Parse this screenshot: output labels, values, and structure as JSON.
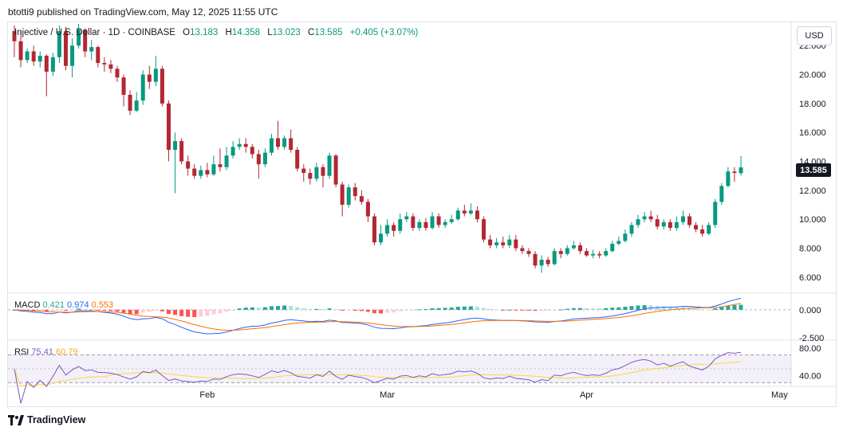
{
  "header": {
    "text": "btotti9 published on TradingView.com, May 12, 2025 11:55 UTC"
  },
  "legend": {
    "symbol": "Injective / U.S. Dollar · 1D · COINBASE",
    "o_label": "O",
    "o": "13.183",
    "h_label": "H",
    "h": "14.358",
    "l_label": "L",
    "l": "13.023",
    "c_label": "C",
    "c": "13.585",
    "change": "+0.405 (+3.07%)"
  },
  "currency": "USD",
  "last_price": "13.585",
  "colors": {
    "up": "#089981",
    "down": "#b22833",
    "macd_line": "#2962ff",
    "signal_line": "#ff6d00",
    "rsi_line": "#7e57c2",
    "rsi_ma": "#fdd835"
  },
  "macd_legend": {
    "name": "MACD",
    "hist": "0.421",
    "macd": "0.974",
    "signal": "0.553"
  },
  "rsi_legend": {
    "name": "RSI",
    "rsi": "75.41",
    "ma": "60.79"
  },
  "footer": {
    "brand": "TradingView"
  },
  "chart_data": {
    "type": "candlestick",
    "title": "Injective / U.S. Dollar · 1D · COINBASE",
    "price_axis": {
      "min": 5.0,
      "max": 23.5,
      "ticks": [
        "22.000",
        "20.000",
        "18.000",
        "16.000",
        "14.000",
        "12.000",
        "10.000",
        "8.000",
        "6.000"
      ],
      "tick_values": [
        22,
        20,
        18,
        16,
        14,
        12,
        10,
        8,
        6
      ]
    },
    "x_ticks": [
      {
        "label": "Feb",
        "index": 30
      },
      {
        "label": "Mar",
        "index": 58
      },
      {
        "label": "Apr",
        "index": 89
      },
      {
        "label": "May",
        "index": 119
      }
    ],
    "candles": [
      [
        23.0,
        22.3,
        23.4,
        21.2
      ],
      [
        22.3,
        21.0,
        23.0,
        20.5
      ],
      [
        21.0,
        21.6,
        21.8,
        20.8
      ],
      [
        21.6,
        20.9,
        22.0,
        20.6
      ],
      [
        20.9,
        21.3,
        21.6,
        20.5
      ],
      [
        21.3,
        20.2,
        21.4,
        18.5
      ],
      [
        20.2,
        21.2,
        21.5,
        19.9
      ],
      [
        21.2,
        23.0,
        23.4,
        20.8
      ],
      [
        23.0,
        20.6,
        23.3,
        20.3
      ],
      [
        20.6,
        22.0,
        22.5,
        19.8
      ],
      [
        22.0,
        23.1,
        23.5,
        21.8
      ],
      [
        23.1,
        21.6,
        23.2,
        21.2
      ],
      [
        21.6,
        21.9,
        22.4,
        21.0
      ],
      [
        21.9,
        20.8,
        22.0,
        20.5
      ],
      [
        20.8,
        20.7,
        21.2,
        20.2
      ],
      [
        20.7,
        20.4,
        21.0,
        20.1
      ],
      [
        20.4,
        19.8,
        20.6,
        19.5
      ],
      [
        19.8,
        18.6,
        20.0,
        17.8
      ],
      [
        18.6,
        17.5,
        18.9,
        17.2
      ],
      [
        17.5,
        18.2,
        18.8,
        17.4
      ],
      [
        18.2,
        20.0,
        20.3,
        17.9
      ],
      [
        20.0,
        19.5,
        20.6,
        19.0
      ],
      [
        19.5,
        20.4,
        21.3,
        19.2
      ],
      [
        20.4,
        18.0,
        20.6,
        17.8
      ],
      [
        18.0,
        14.8,
        18.2,
        14.0
      ],
      [
        14.8,
        15.4,
        16.0,
        11.8
      ],
      [
        15.4,
        14.0,
        15.6,
        13.8
      ],
      [
        14.0,
        13.5,
        14.4,
        13.0
      ],
      [
        13.5,
        13.0,
        13.8,
        12.8
      ],
      [
        13.0,
        13.4,
        13.7,
        12.8
      ],
      [
        13.4,
        13.1,
        13.9,
        12.9
      ],
      [
        13.1,
        13.8,
        14.4,
        13.0
      ],
      [
        13.8,
        13.6,
        14.9,
        13.3
      ],
      [
        13.6,
        14.4,
        15.0,
        13.4
      ],
      [
        14.4,
        15.0,
        15.4,
        14.2
      ],
      [
        15.0,
        15.2,
        15.6,
        14.8
      ],
      [
        15.2,
        15.0,
        15.6,
        14.6
      ],
      [
        15.0,
        14.5,
        15.2,
        14.2
      ],
      [
        14.5,
        13.8,
        14.8,
        12.8
      ],
      [
        13.8,
        14.6,
        14.9,
        13.6
      ],
      [
        14.6,
        15.6,
        15.9,
        14.4
      ],
      [
        15.6,
        15.0,
        16.8,
        14.8
      ],
      [
        15.0,
        15.6,
        15.8,
        14.8
      ],
      [
        15.6,
        14.8,
        16.2,
        14.6
      ],
      [
        14.8,
        13.5,
        15.0,
        13.3
      ],
      [
        13.5,
        13.2,
        13.8,
        12.6
      ],
      [
        13.2,
        12.8,
        13.5,
        12.4
      ],
      [
        12.8,
        13.6,
        13.9,
        12.6
      ],
      [
        13.6,
        13.0,
        13.8,
        12.2
      ],
      [
        13.0,
        14.4,
        14.6,
        12.8
      ],
      [
        14.4,
        12.4,
        14.5,
        12.2
      ],
      [
        12.4,
        11.0,
        12.6,
        10.2
      ],
      [
        11.0,
        12.2,
        12.4,
        10.8
      ],
      [
        12.2,
        11.6,
        12.5,
        11.3
      ],
      [
        11.6,
        11.2,
        12.0,
        11.0
      ],
      [
        11.2,
        10.2,
        11.4,
        9.8
      ],
      [
        10.2,
        8.4,
        10.4,
        8.2
      ],
      [
        8.4,
        9.0,
        9.6,
        8.2
      ],
      [
        9.0,
        9.6,
        10.0,
        8.8
      ],
      [
        9.6,
        9.2,
        9.8,
        8.8
      ],
      [
        9.2,
        10.0,
        10.4,
        9.0
      ],
      [
        10.0,
        10.2,
        10.5,
        9.8
      ],
      [
        10.2,
        9.4,
        10.4,
        9.2
      ],
      [
        9.4,
        9.8,
        10.0,
        9.2
      ],
      [
        9.8,
        9.4,
        10.1,
        9.2
      ],
      [
        9.4,
        10.2,
        10.5,
        9.3
      ],
      [
        10.2,
        9.6,
        10.4,
        9.4
      ],
      [
        9.6,
        9.8,
        10.0,
        9.4
      ],
      [
        9.8,
        10.0,
        10.3,
        9.7
      ],
      [
        10.0,
        10.6,
        10.8,
        9.9
      ],
      [
        10.6,
        10.4,
        11.0,
        10.2
      ],
      [
        10.4,
        10.6,
        11.1,
        10.3
      ],
      [
        10.6,
        10.0,
        10.9,
        9.8
      ],
      [
        10.0,
        8.6,
        10.2,
        8.4
      ],
      [
        8.6,
        8.2,
        8.9,
        8.0
      ],
      [
        8.2,
        8.4,
        8.7,
        8.0
      ],
      [
        8.4,
        8.2,
        8.8,
        8.0
      ],
      [
        8.2,
        8.6,
        8.9,
        8.0
      ],
      [
        8.6,
        8.0,
        8.9,
        7.8
      ],
      [
        8.0,
        7.8,
        8.2,
        7.6
      ],
      [
        7.8,
        7.6,
        8.0,
        7.4
      ],
      [
        7.6,
        6.8,
        7.8,
        6.6
      ],
      [
        6.8,
        7.2,
        7.5,
        6.3
      ],
      [
        7.2,
        6.9,
        7.4,
        6.7
      ],
      [
        6.9,
        7.8,
        8.0,
        6.8
      ],
      [
        7.8,
        7.6,
        8.0,
        7.3
      ],
      [
        7.6,
        8.0,
        8.2,
        7.5
      ],
      [
        8.0,
        8.2,
        8.5,
        7.9
      ],
      [
        8.2,
        7.8,
        8.4,
        7.6
      ],
      [
        7.8,
        7.5,
        8.0,
        7.4
      ],
      [
        7.5,
        7.6,
        7.9,
        7.3
      ],
      [
        7.6,
        7.5,
        7.8,
        7.3
      ],
      [
        7.5,
        7.8,
        8.0,
        7.4
      ],
      [
        7.8,
        8.3,
        8.5,
        7.7
      ],
      [
        8.3,
        8.5,
        8.8,
        8.2
      ],
      [
        8.5,
        9.0,
        9.3,
        8.4
      ],
      [
        9.0,
        9.6,
        9.8,
        8.8
      ],
      [
        9.6,
        10.0,
        10.3,
        9.4
      ],
      [
        10.0,
        10.2,
        10.5,
        9.8
      ],
      [
        10.2,
        10.0,
        10.6,
        9.8
      ],
      [
        10.0,
        9.5,
        10.3,
        9.3
      ],
      [
        9.5,
        9.8,
        10.0,
        9.3
      ],
      [
        9.8,
        9.4,
        10.0,
        9.2
      ],
      [
        9.4,
        9.8,
        10.2,
        9.2
      ],
      [
        9.8,
        10.2,
        10.6,
        9.6
      ],
      [
        10.2,
        9.6,
        10.4,
        9.4
      ],
      [
        9.6,
        9.3,
        9.8,
        9.1
      ],
      [
        9.3,
        9.0,
        9.6,
        8.8
      ],
      [
        9.0,
        9.6,
        9.8,
        8.9
      ],
      [
        9.6,
        11.2,
        11.4,
        9.4
      ],
      [
        11.2,
        12.3,
        12.5,
        11.0
      ],
      [
        12.3,
        13.3,
        13.6,
        12.2
      ],
      [
        13.3,
        13.2,
        13.6,
        12.6
      ],
      [
        13.183,
        13.585,
        14.358,
        13.023
      ]
    ],
    "macd": {
      "hist_ylim": [
        -2.5,
        1.2
      ],
      "axis_ticks": [
        "0.000",
        "-2.500"
      ],
      "axis_values": [
        0,
        -2.5
      ]
    },
    "rsi": {
      "ylim": [
        28,
        88
      ],
      "axis_ticks": [
        "80.00",
        "40.00"
      ],
      "axis_values": [
        80,
        40
      ],
      "bands": [
        70,
        30,
        50
      ]
    }
  }
}
